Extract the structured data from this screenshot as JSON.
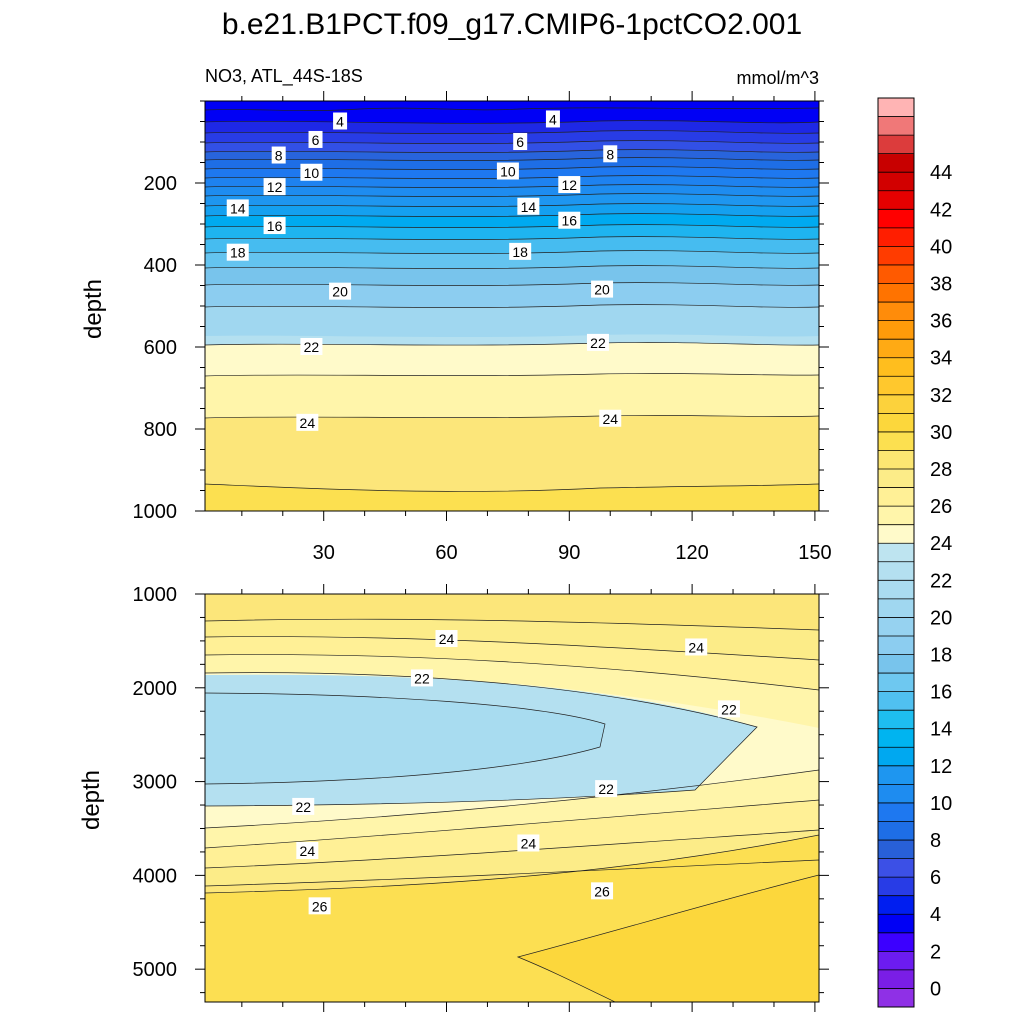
{
  "title": "b.e21.B1PCT.f09_g17.CMIP6-1pctCO2.001",
  "chart_data": {
    "type": "contour",
    "variable": "NO3",
    "region": "ATL_44S-18S",
    "subtitle_left": "NO3, ATL_44S-18S",
    "units": "mmol/m^3",
    "xlabel": "",
    "x_ticks": [
      30,
      60,
      90,
      120,
      150
    ],
    "x_tick_labels": [
      "30",
      "60",
      "90",
      "120",
      "150"
    ],
    "xlim": [
      1,
      151
    ],
    "panels": [
      {
        "name": "upper-ocean",
        "ylabel": "depth",
        "ylim": [
          0,
          1000
        ],
        "y_ticks": [
          200,
          400,
          600,
          800,
          1000
        ],
        "y_tick_labels": [
          "200",
          "400",
          "600",
          "800",
          "1000"
        ],
        "contour_labels": [
          {
            "text": "4",
            "x": 34,
            "y": 50
          },
          {
            "text": "4",
            "x": 86,
            "y": 45
          },
          {
            "text": "6",
            "x": 28,
            "y": 95
          },
          {
            "text": "6",
            "x": 78,
            "y": 100
          },
          {
            "text": "8",
            "x": 19,
            "y": 133
          },
          {
            "text": "8",
            "x": 100,
            "y": 130
          },
          {
            "text": "10",
            "x": 27,
            "y": 175
          },
          {
            "text": "10",
            "x": 75,
            "y": 172
          },
          {
            "text": "12",
            "x": 18,
            "y": 210
          },
          {
            "text": "12",
            "x": 90,
            "y": 205
          },
          {
            "text": "14",
            "x": 9,
            "y": 262
          },
          {
            "text": "14",
            "x": 80,
            "y": 258
          },
          {
            "text": "16",
            "x": 18,
            "y": 305
          },
          {
            "text": "16",
            "x": 90,
            "y": 292
          },
          {
            "text": "18",
            "x": 9,
            "y": 370
          },
          {
            "text": "18",
            "x": 78,
            "y": 368
          },
          {
            "text": "20",
            "x": 34,
            "y": 465
          },
          {
            "text": "20",
            "x": 98,
            "y": 460
          },
          {
            "text": "22",
            "x": 27,
            "y": 600
          },
          {
            "text": "22",
            "x": 97,
            "y": 590
          },
          {
            "text": "24",
            "x": 26,
            "y": 785
          },
          {
            "text": "24",
            "x": 100,
            "y": 775
          }
        ]
      },
      {
        "name": "deep-ocean",
        "ylabel": "depth",
        "ylim": [
          1000,
          5350
        ],
        "y_ticks": [
          1000,
          2000,
          3000,
          4000,
          5000
        ],
        "y_tick_labels": [
          "1000",
          "2000",
          "3000",
          "4000",
          "5000"
        ],
        "contour_labels": [
          {
            "text": "24",
            "x": 60,
            "y": 1480
          },
          {
            "text": "24",
            "x": 121,
            "y": 1570
          },
          {
            "text": "22",
            "x": 54,
            "y": 1900
          },
          {
            "text": "22",
            "x": 129,
            "y": 2230
          },
          {
            "text": "22",
            "x": 99,
            "y": 3080
          },
          {
            "text": "22",
            "x": 25,
            "y": 3270
          },
          {
            "text": "24",
            "x": 80,
            "y": 3660
          },
          {
            "text": "24",
            "x": 26,
            "y": 3740
          },
          {
            "text": "26",
            "x": 98,
            "y": 4170
          },
          {
            "text": "26",
            "x": 29,
            "y": 4330
          }
        ]
      }
    ],
    "colorbar": {
      "tick_labels": [
        "0",
        "2",
        "4",
        "6",
        "8",
        "10",
        "12",
        "14",
        "16",
        "18",
        "20",
        "22",
        "24",
        "26",
        "28",
        "30",
        "32",
        "34",
        "36",
        "38",
        "40",
        "42",
        "44"
      ],
      "levels_from_bottom": [
        -1,
        0,
        1,
        2,
        3,
        4,
        5,
        6,
        7,
        8,
        9,
        10,
        11,
        12,
        13,
        14,
        15,
        16,
        17,
        18,
        19,
        20,
        21,
        22,
        23,
        24,
        25,
        26,
        27,
        28,
        29,
        30,
        31,
        32,
        33,
        34,
        35,
        36,
        37,
        38,
        39,
        40,
        41,
        42,
        43,
        44,
        45,
        46
      ],
      "colors_from_bottom": [
        "#8f30e6",
        "#7a1ee6",
        "#6c1cf0",
        "#3c00ff",
        "#0000f5",
        "#001ef0",
        "#283ce6",
        "#3c50e6",
        "#2860d8",
        "#1e6ee6",
        "#1e78f0",
        "#1e8cf0",
        "#1e96f0",
        "#00a8f0",
        "#00b4f0",
        "#1ebef0",
        "#50c0f0",
        "#6ec8f0",
        "#78c4ec",
        "#8ccdf0",
        "#96d2f0",
        "#a0d7f0",
        "#aadcf0",
        "#b4e0f0",
        "#bee4f0",
        "#fffaca",
        "#fff5aa",
        "#fff096",
        "#fcec88",
        "#fce672",
        "#fce050",
        "#fcd73c",
        "#fcd23c",
        "#ffc82d",
        "#ffbe1e",
        "#ffaa14",
        "#ff9b0a",
        "#ff8c0a",
        "#ff7300",
        "#ff5a00",
        "#ff3c00",
        "#ff1e00",
        "#ff0000",
        "#e60000",
        "#d20000",
        "#c80000",
        "#dc3c3c",
        "#f07878",
        "#ffb4b4"
      ]
    }
  }
}
